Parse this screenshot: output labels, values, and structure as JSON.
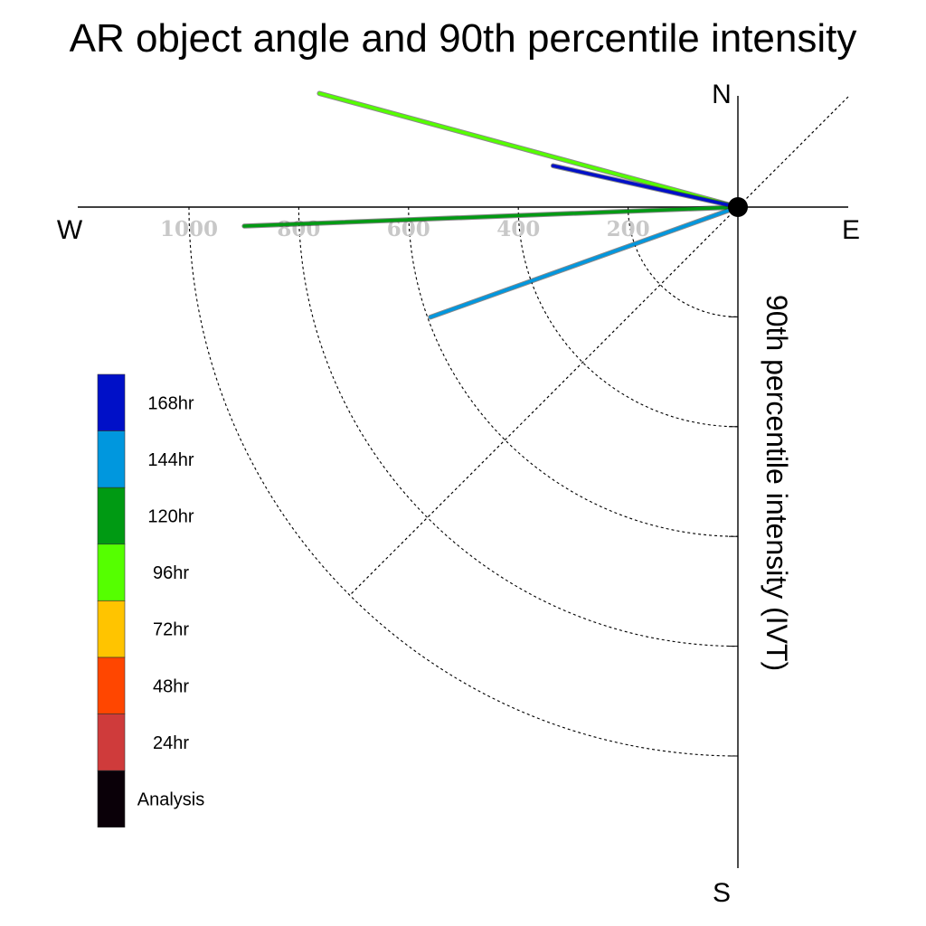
{
  "chart_data": {
    "type": "polar-quadrant",
    "title": "AR object angle and 90th percentile intensity",
    "ylabel": "90th percentile intensity (IVT)",
    "compass": {
      "north": "N",
      "south": "S",
      "east": "E",
      "west": "W"
    },
    "radial_range": [
      0,
      1000
    ],
    "radial_ticks": [
      {
        "value": 200,
        "label": "200"
      },
      {
        "value": 400,
        "label": "400"
      },
      {
        "value": 600,
        "label": "600"
      },
      {
        "value": 800,
        "label": "800"
      },
      {
        "value": 1000,
        "label": "1000"
      }
    ],
    "series": [
      {
        "name": "120hr",
        "color": "#009a13",
        "angle_deg_from_west": 2.2,
        "intensity": 900
      },
      {
        "name": "96hr",
        "color": "#55ff00",
        "angle_deg_from_west": -15.2,
        "intensity": 790
      },
      {
        "name": "168hr",
        "color": "#0010c8",
        "angle_deg_from_west": -12.6,
        "intensity": 345
      },
      {
        "name": "144hr",
        "color": "#0097de",
        "angle_deg_from_west": 19.7,
        "intensity": 595
      }
    ],
    "legend": [
      {
        "label": "168hr",
        "color": "#0010c8"
      },
      {
        "label": "144hr",
        "color": "#0097de"
      },
      {
        "label": "120hr",
        "color": "#009a13"
      },
      {
        "label": "96hr",
        "color": "#55ff00"
      },
      {
        "label": "72hr",
        "color": "#ffc400"
      },
      {
        "label": "48hr",
        "color": "#ff4600"
      },
      {
        "label": "24hr",
        "color": "#cf3b3b"
      },
      {
        "label": "Analysis",
        "color": "#0a0008"
      }
    ]
  }
}
